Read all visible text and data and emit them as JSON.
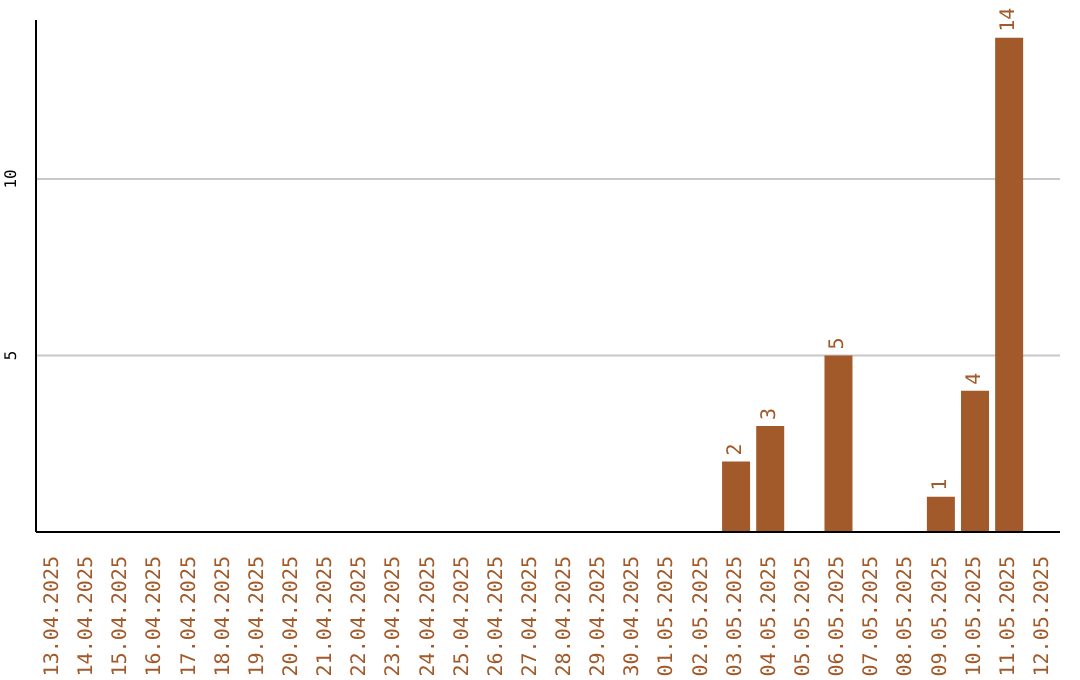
{
  "chart_data": {
    "type": "bar",
    "categories": [
      "13.04.2025",
      "14.04.2025",
      "15.04.2025",
      "16.04.2025",
      "17.04.2025",
      "18.04.2025",
      "19.04.2025",
      "20.04.2025",
      "21.04.2025",
      "22.04.2025",
      "23.04.2025",
      "24.04.2025",
      "25.04.2025",
      "26.04.2025",
      "27.04.2025",
      "28.04.2025",
      "29.04.2025",
      "30.04.2025",
      "01.05.2025",
      "02.05.2025",
      "03.05.2025",
      "04.05.2025",
      "05.05.2025",
      "06.05.2025",
      "07.05.2025",
      "08.05.2025",
      "09.05.2025",
      "10.05.2025",
      "11.05.2025",
      "12.05.2025"
    ],
    "values": [
      0,
      0,
      0,
      0,
      0,
      0,
      0,
      0,
      0,
      0,
      0,
      0,
      0,
      0,
      0,
      0,
      0,
      0,
      0,
      0,
      2,
      3,
      0,
      5,
      0,
      0,
      1,
      4,
      14,
      0
    ],
    "value_labels": [
      null,
      null,
      null,
      null,
      null,
      null,
      null,
      null,
      null,
      null,
      null,
      null,
      null,
      null,
      null,
      null,
      null,
      null,
      null,
      null,
      "2",
      "3",
      null,
      "5",
      null,
      null,
      "1",
      "4",
      "14",
      null
    ],
    "color": "#a25a2a",
    "ylim": [
      0,
      14.5
    ],
    "yticks": [
      5,
      10
    ],
    "grid": "y"
  }
}
